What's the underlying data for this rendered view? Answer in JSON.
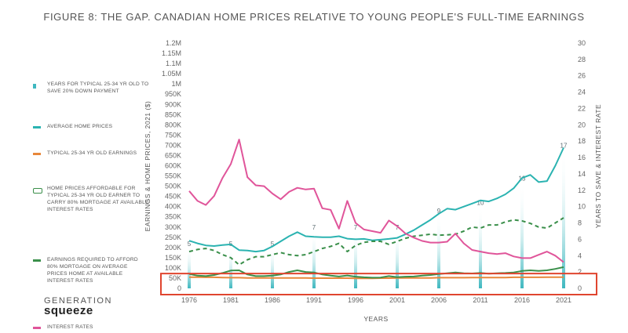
{
  "title": "FIGURE 8: THE GAP. CANADIAN HOME PRICES RELATIVE TO YOUNG PEOPLE'S FULL-TIME EARNINGS",
  "logo": {
    "line1": "GENERATION",
    "line2": "squeeze"
  },
  "legend": [
    {
      "label": "YEARS FOR TYPICAL 25-34 YR OLD TO SAVE 20% DOWN PAYMENT",
      "color": "#3fb8c0",
      "kind": "bar"
    },
    {
      "label": "AVERAGE HOME PRICES",
      "color": "#2bb3b1",
      "kind": "line"
    },
    {
      "label": "TYPICAL 25-34 YR OLD EARNINGS",
      "color": "#e8873a",
      "kind": "line"
    },
    {
      "label": "HOME PRICES AFFORDABLE FOR TYPICAL 25-34 YR OLD EARNER TO CARRY 80% MORTGAGE AT AVAILABLE INTEREST RATES",
      "color": "#3a8f4a",
      "kind": "dashed"
    },
    {
      "label": "EARNINGS REQUIRED TO AFFORD 80% MORTGAGE ON AVERAGE PRICES HOME AT AVAILABLE INTEREST RATES",
      "color": "#3a8f4a",
      "kind": "line"
    },
    {
      "label": "INTEREST RATES",
      "color": "#e0559a",
      "kind": "line"
    }
  ],
  "chart_data": {
    "type": "line",
    "title": "FIGURE 8: THE GAP. CANADIAN HOME PRICES RELATIVE TO YOUNG PEOPLE'S FULL-TIME EARNINGS",
    "xlabel": "YEARS",
    "ylabel": "EARNINGS & HOME PRICES, 2021 ($)",
    "y2label": "YEARS TO SAVE & INTEREST RATE",
    "x": [
      1976,
      1977,
      1978,
      1979,
      1980,
      1981,
      1982,
      1983,
      1984,
      1985,
      1986,
      1987,
      1988,
      1989,
      1990,
      1991,
      1992,
      1993,
      1994,
      1995,
      1996,
      1997,
      1998,
      1999,
      2000,
      2001,
      2002,
      2003,
      2004,
      2005,
      2006,
      2007,
      2008,
      2009,
      2010,
      2011,
      2012,
      2013,
      2014,
      2015,
      2016,
      2017,
      2018,
      2019,
      2020,
      2021
    ],
    "xticks": [
      1976,
      1981,
      1986,
      1991,
      1996,
      2001,
      2006,
      2011,
      2016,
      2021
    ],
    "ylim": [
      0,
      1200000
    ],
    "yticks_left": [
      "0",
      "50K",
      "100K",
      "150K",
      "200K",
      "250K",
      "300K",
      "350K",
      "400K",
      "450K",
      "500K",
      "550K",
      "600K",
      "650K",
      "700K",
      "750K",
      "800K",
      "850K",
      "900K",
      "950K",
      "1M",
      "1.05M",
      "1.1M",
      "1.15M",
      "1.2M"
    ],
    "y2lim": [
      0,
      30
    ],
    "yticks_right": [
      "0",
      "2",
      "4",
      "6",
      "8",
      "10",
      "12",
      "14",
      "16",
      "18",
      "20",
      "22",
      "24",
      "26",
      "28",
      "30"
    ],
    "series": [
      {
        "name": "AVERAGE HOME PRICES",
        "axis": "left",
        "color": "#2bb3b1",
        "values": [
          233000,
          220000,
          210000,
          207000,
          212000,
          215000,
          187000,
          185000,
          180000,
          185000,
          205000,
          230000,
          255000,
          275000,
          255000,
          252000,
          250000,
          250000,
          255000,
          243000,
          240000,
          242000,
          235000,
          238000,
          242000,
          247000,
          265000,
          285000,
          310000,
          335000,
          365000,
          390000,
          385000,
          400000,
          415000,
          430000,
          425000,
          440000,
          460000,
          490000,
          540000,
          555000,
          520000,
          525000,
          600000,
          688000
        ]
      },
      {
        "name": "TYPICAL 25-34 YR OLD EARNINGS",
        "axis": "left",
        "color": "#e8873a",
        "values": [
          55000,
          55000,
          54000,
          54000,
          53000,
          52000,
          52000,
          51000,
          51000,
          51000,
          51000,
          51000,
          51000,
          51000,
          51000,
          50000,
          50000,
          50000,
          50000,
          50000,
          49000,
          49000,
          49000,
          50000,
          50000,
          51000,
          51000,
          51000,
          51000,
          51000,
          52000,
          52000,
          52000,
          52000,
          53000,
          53000,
          53000,
          53000,
          53000,
          54000,
          54000,
          54000,
          54000,
          55000,
          55000,
          55000
        ]
      },
      {
        "name": "HOME PRICES AFFORDABLE FOR TYPICAL 25-34 YR OLD EARNER TO CARRY 80% MORTGAGE AT AVAILABLE INTEREST RATES",
        "axis": "left",
        "color": "#3a8f4a",
        "dashed": true,
        "values": [
          180000,
          190000,
          195000,
          185000,
          165000,
          150000,
          115000,
          140000,
          155000,
          155000,
          165000,
          175000,
          165000,
          160000,
          165000,
          180000,
          195000,
          205000,
          220000,
          180000,
          210000,
          225000,
          230000,
          230000,
          215000,
          230000,
          245000,
          255000,
          260000,
          265000,
          260000,
          262000,
          265000,
          280000,
          300000,
          295000,
          310000,
          310000,
          325000,
          335000,
          330000,
          318000,
          300000,
          295000,
          320000,
          345000
        ]
      },
      {
        "name": "EARNINGS REQUIRED TO AFFORD 80% MORTGAGE ON AVERAGE PRICES HOME AT AVAILABLE INTEREST RATES",
        "axis": "left",
        "color": "#3a8f4a",
        "values": [
          70000,
          62000,
          60000,
          65000,
          75000,
          87000,
          88000,
          68000,
          60000,
          60000,
          62000,
          68000,
          80000,
          88000,
          80000,
          78000,
          68000,
          62000,
          58000,
          63000,
          57000,
          54000,
          52000,
          53000,
          60000,
          55000,
          57000,
          58000,
          62000,
          65000,
          70000,
          74000,
          78000,
          74000,
          73000,
          75000,
          72000,
          74000,
          75000,
          78000,
          85000,
          88000,
          85000,
          88000,
          95000,
          104000
        ]
      },
      {
        "name": "INTEREST RATES",
        "axis": "right",
        "color": "#e0559a",
        "values": [
          11.9,
          10.7,
          10.2,
          11.3,
          13.5,
          15.2,
          18.2,
          13.6,
          12.6,
          12.5,
          11.6,
          10.9,
          11.8,
          12.3,
          12.1,
          12.2,
          9.8,
          9.6,
          7.3,
          10.7,
          8.0,
          7.2,
          7.0,
          6.8,
          8.3,
          7.6,
          6.7,
          6.2,
          5.8,
          5.6,
          5.6,
          5.7,
          6.7,
          5.5,
          4.7,
          4.5,
          4.3,
          4.2,
          4.3,
          3.9,
          3.7,
          3.7,
          4.1,
          4.5,
          4.0,
          3.2
        ]
      }
    ],
    "bars": {
      "name": "YEARS FOR TYPICAL 25-34 YR OLD TO SAVE 20% DOWN PAYMENT",
      "axis": "right",
      "color": "#3fb8c0",
      "x": [
        1976,
        1981,
        1986,
        1991,
        1996,
        2001,
        2006,
        2011,
        2016,
        2021
      ],
      "values": [
        5,
        5,
        5,
        7,
        7,
        7,
        9,
        10,
        13,
        17
      ],
      "labels": [
        "5",
        "5",
        "5",
        "7",
        "7",
        "7",
        "9",
        "10",
        "13",
        "17"
      ]
    },
    "highlight_box": {
      "y_from": 0,
      "y_to": 80000,
      "color": "#e0452f"
    },
    "grid": false,
    "legend_position": "left"
  }
}
